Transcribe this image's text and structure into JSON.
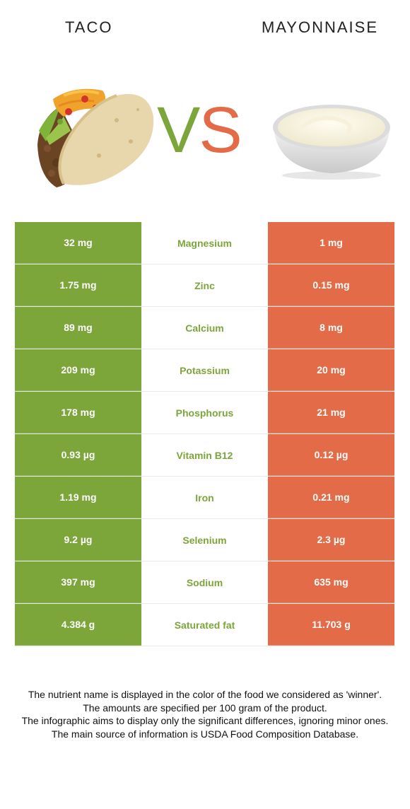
{
  "left_food": {
    "name": "TACO"
  },
  "right_food": {
    "name": "MAYONNAISE"
  },
  "vs": {
    "v": "V",
    "s": "S"
  },
  "colors": {
    "winner_left": "#7ca53a",
    "winner_right": "#e46b47"
  },
  "rows": [
    {
      "left": "32 mg",
      "nutrient": "Magnesium",
      "right": "1 mg"
    },
    {
      "left": "1.75 mg",
      "nutrient": "Zinc",
      "right": "0.15 mg"
    },
    {
      "left": "89 mg",
      "nutrient": "Calcium",
      "right": "8 mg"
    },
    {
      "left": "209 mg",
      "nutrient": "Potassium",
      "right": "20 mg"
    },
    {
      "left": "178 mg",
      "nutrient": "Phosphorus",
      "right": "21 mg"
    },
    {
      "left": "0.93 µg",
      "nutrient": "Vitamin B12",
      "right": "0.12 µg"
    },
    {
      "left": "1.19 mg",
      "nutrient": "Iron",
      "right": "0.21 mg"
    },
    {
      "left": "9.2 µg",
      "nutrient": "Selenium",
      "right": "2.3 µg"
    },
    {
      "left": "397 mg",
      "nutrient": "Sodium",
      "right": "635 mg"
    },
    {
      "left": "4.384 g",
      "nutrient": "Saturated fat",
      "right": "11.703 g"
    }
  ],
  "footer": {
    "line1": "The nutrient name is displayed in the color of the food we considered as 'winner'.",
    "line2": "The amounts are specified per 100 gram of the product.",
    "line3": "The infographic aims to display only the significant differences, ignoring minor ones.",
    "line4": "The main source of information is USDA Food Composition Database."
  }
}
